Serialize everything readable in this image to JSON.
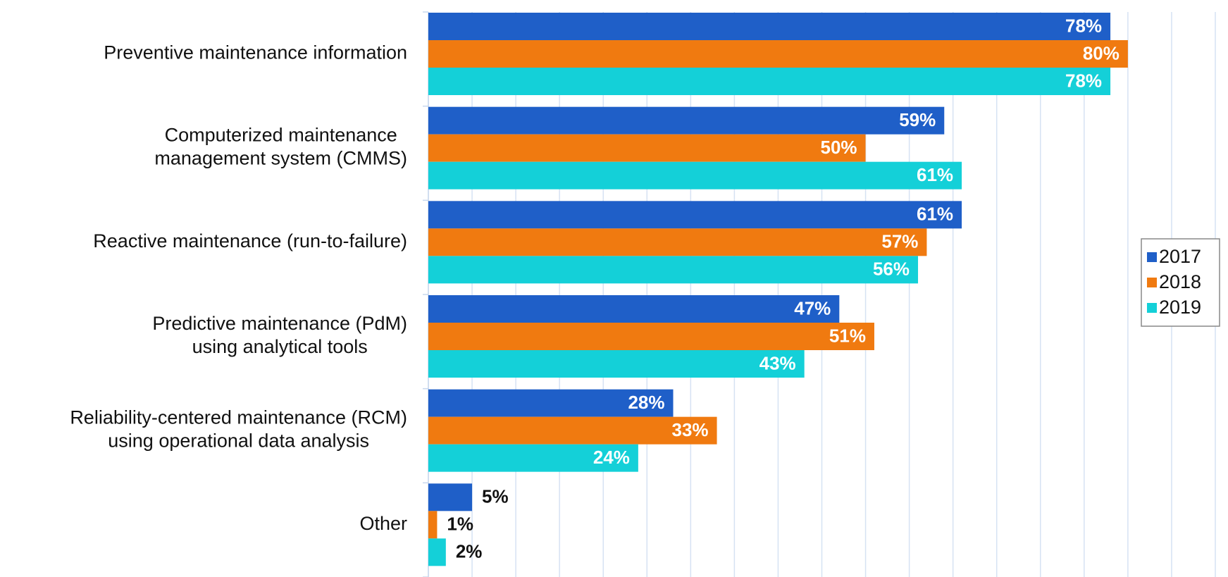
{
  "chart_data": {
    "type": "bar",
    "orientation": "horizontal",
    "categories": [
      "Preventive maintenance information",
      "Computerized maintenance\nmanagement system (CMMS)",
      "Reactive maintenance (run-to-failure)",
      "Predictive maintenance (PdM)\nusing analytical tools",
      "Reliability-centered maintenance (RCM)\nusing operational data analysis",
      "Other"
    ],
    "series": [
      {
        "name": "2017",
        "color": "#1f5fc8",
        "values": [
          78,
          59,
          61,
          47,
          28,
          5
        ],
        "value_labels": [
          "78%",
          "59%",
          "61%",
          "47%",
          "28%",
          "5%"
        ]
      },
      {
        "name": "2018",
        "color": "#f07a10",
        "values": [
          80,
          50,
          57,
          51,
          33,
          1
        ],
        "value_labels": [
          "80%",
          "50%",
          "57%",
          "51%",
          "33%",
          "1%"
        ]
      },
      {
        "name": "2019",
        "color": "#14d0d8",
        "values": [
          78,
          61,
          56,
          43,
          24,
          2
        ],
        "value_labels": [
          "78%",
          "61%",
          "56%",
          "43%",
          "24%",
          "2%"
        ]
      }
    ],
    "xlim": [
      0,
      90
    ],
    "xticks": [
      0,
      5,
      10,
      15,
      20,
      25,
      30,
      35,
      40,
      45,
      50,
      55,
      60,
      65,
      70,
      75,
      80,
      85,
      90
    ],
    "grid": true,
    "legend": "right"
  }
}
